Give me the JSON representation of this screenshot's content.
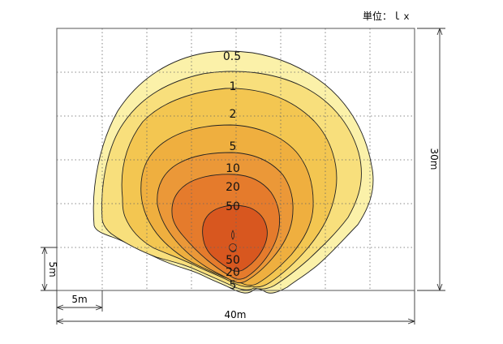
{
  "unit_label": "単位：ｌｘ",
  "dimensions": {
    "width_label": "40m",
    "height_label": "30m",
    "grid_spacing_label": "5m",
    "source_offset_label": "5m"
  },
  "contour_levels": [
    "0.5",
    "1",
    "2",
    "5",
    "10",
    "20",
    "50"
  ],
  "lower_labels": [
    "50",
    "20",
    "5"
  ],
  "colors": {
    "level_0_5": "#fbf1a9",
    "level_1": "#f8df7c",
    "level_2": "#f3c651",
    "level_5": "#efaf3f",
    "level_10": "#eb9838",
    "level_20": "#e57b2c",
    "level_50": "#d8571f",
    "grid": "#666666",
    "frame": "#555555",
    "contour_line": "#222222"
  }
}
